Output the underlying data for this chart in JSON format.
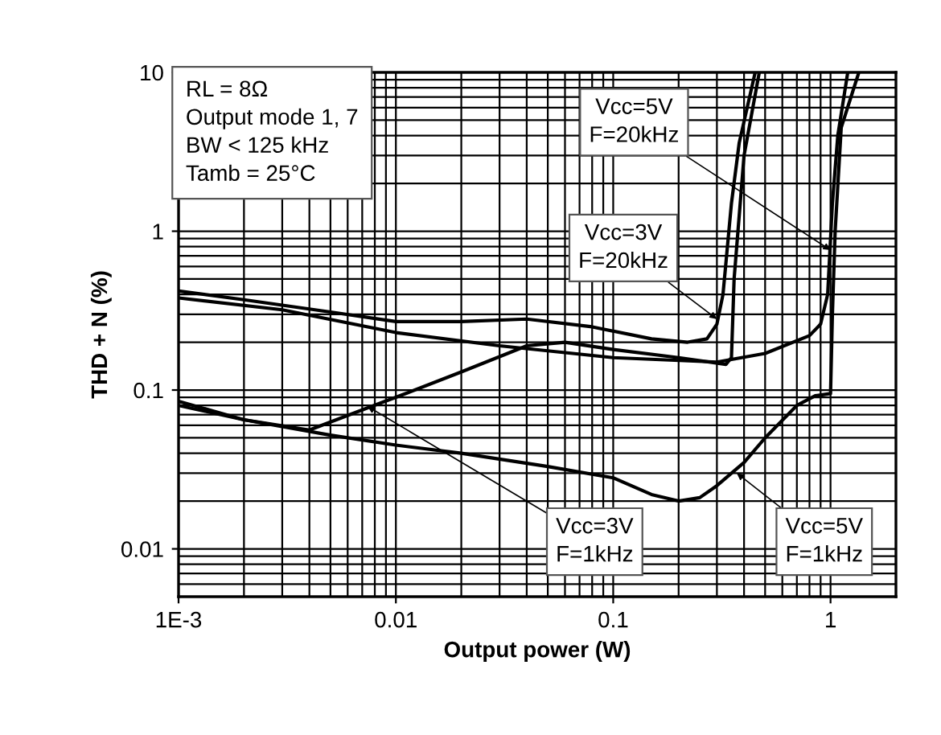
{
  "chart_data": {
    "type": "line",
    "xlabel": "Output power (W)",
    "ylabel": "THD + N (%)",
    "log": "xy",
    "xlim": [
      0.001,
      2
    ],
    "ylim": [
      0.005,
      10
    ],
    "xticks": [
      {
        "value": 0.001,
        "label": "1E-3"
      },
      0.01,
      0.1,
      1
    ],
    "yticks": [
      0.01,
      0.1,
      1,
      10
    ],
    "grid": true,
    "legend": false,
    "marker": "none",
    "line_style": "solid",
    "series": [
      {
        "color": "#000000",
        "x": [
          0.001,
          0.002,
          0.005,
          0.01,
          0.02,
          0.04,
          0.08,
          0.15,
          0.22,
          0.27,
          0.3,
          0.32,
          0.35,
          0.38,
          0.45
        ],
        "values": [
          0.42,
          0.37,
          0.31,
          0.27,
          0.27,
          0.28,
          0.25,
          0.21,
          0.2,
          0.21,
          0.26,
          0.4,
          1.5,
          3.6,
          10
        ]
      },
      {
        "color": "#000000",
        "x": [
          0.001,
          0.003,
          0.01,
          0.03,
          0.1,
          0.3,
          0.5,
          0.8,
          0.9,
          0.97,
          1.02,
          1.08,
          1.2
        ],
        "values": [
          0.38,
          0.32,
          0.23,
          0.19,
          0.16,
          0.15,
          0.17,
          0.22,
          0.26,
          0.4,
          1.5,
          4,
          10
        ]
      },
      {
        "color": "#000000",
        "x": [
          0.001,
          0.002,
          0.004,
          0.007,
          0.01,
          0.02,
          0.04,
          0.06,
          0.1,
          0.2,
          0.33,
          0.35,
          0.36,
          0.4,
          0.47
        ],
        "values": [
          0.085,
          0.065,
          0.056,
          0.075,
          0.09,
          0.13,
          0.19,
          0.2,
          0.18,
          0.16,
          0.145,
          0.16,
          0.5,
          3,
          10
        ]
      },
      {
        "color": "#000000",
        "x": [
          0.001,
          0.002,
          0.005,
          0.01,
          0.02,
          0.05,
          0.1,
          0.15,
          0.2,
          0.25,
          0.3,
          0.4,
          0.5,
          0.7,
          0.85,
          1.0,
          1.02,
          1.05,
          1.12,
          1.35
        ],
        "values": [
          0.08,
          0.065,
          0.052,
          0.045,
          0.04,
          0.033,
          0.028,
          0.022,
          0.02,
          0.021,
          0.025,
          0.035,
          0.05,
          0.08,
          0.092,
          0.095,
          0.3,
          1,
          4.5,
          10
        ]
      }
    ],
    "annotations": [
      "RL = 8Ω\nOutput mode 1, 7\nBW < 125 kHz\nTamb = 25°C",
      {
        "text": "Vcc=5V\nF=20kHz",
        "x": 1.0,
        "y": 0.76
      },
      {
        "text": "Vcc=3V\nF=20kHz",
        "x": 0.3,
        "y": 0.28
      },
      {
        "text": "Vcc=3V\nF=1kHz",
        "x": 0.0074,
        "y": 0.079
      },
      {
        "text": "Vcc=5V\nF=1kHz",
        "x": 0.37,
        "y": 0.03
      }
    ]
  }
}
